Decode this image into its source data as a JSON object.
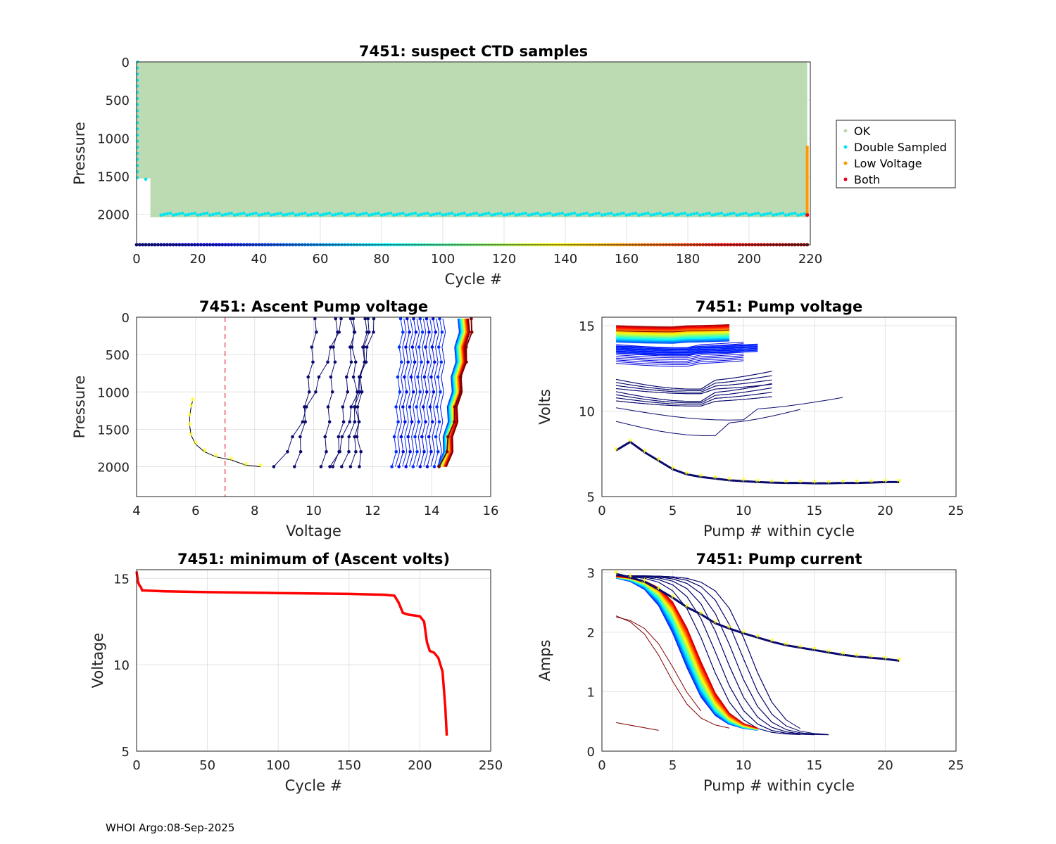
{
  "footer": "WHOI Argo:08-Sep-2025",
  "colors": {
    "ok": "#bcdbb3",
    "double_sampled": "#00e5ee",
    "low_voltage": "#ff9900",
    "both": "#e8001c",
    "min_line": "#ff0000",
    "threshold": "#e8001c",
    "marker": "#ffff00"
  },
  "chart_data": [
    {
      "id": "suspect",
      "type": "scatter",
      "title": "7451: suspect CTD samples",
      "xlabel": "Cycle #",
      "ylabel": "Pressure",
      "xlim": [
        0,
        220
      ],
      "ylim": [
        2400,
        0
      ],
      "xticks": [
        "0",
        "20",
        "40",
        "60",
        "80",
        "100",
        "120",
        "140",
        "160",
        "180",
        "200",
        "220"
      ],
      "yticks": [
        "0",
        "500",
        "1000",
        "1500",
        "2000"
      ],
      "grid": true,
      "legend": {
        "position": "right",
        "entries": [
          "OK",
          "Double Sampled",
          "Low Voltage",
          "Both"
        ]
      },
      "ok_region": {
        "cycle_range": [
          0,
          220
        ],
        "pressure_range": [
          0,
          2040
        ]
      },
      "double_sampled_bottom_pressure": 2010,
      "low_voltage": {
        "cycle": 219,
        "pressure_range": [
          1100,
          2000
        ]
      },
      "both": {
        "cycle": 219,
        "pressure": 2010
      }
    },
    {
      "id": "ascent_voltage",
      "type": "line",
      "title": "7451: Ascent Pump voltage",
      "xlabel": "Voltage",
      "ylabel": "Pressure",
      "xlim": [
        4,
        16
      ],
      "ylim": [
        2400,
        0
      ],
      "xticks": [
        "4",
        "6",
        "8",
        "10",
        "12",
        "14",
        "16"
      ],
      "yticks": [
        "0",
        "500",
        "1000",
        "1500",
        "2000"
      ],
      "grid": true,
      "threshold_voltage": 7,
      "last_cycle_profile": {
        "voltage": [
          8.2,
          7.7,
          7.2,
          6.7,
          6.3,
          6.0,
          5.85,
          5.8,
          5.8,
          5.85,
          5.9
        ],
        "pressure": [
          2000,
          1980,
          1910,
          1870,
          1800,
          1700,
          1580,
          1450,
          1320,
          1200,
          1120
        ]
      }
    },
    {
      "id": "pump_voltage",
      "type": "line",
      "title": "7451: Pump voltage",
      "xlabel": "Pump # within cycle",
      "ylabel": "Volts",
      "xlim": [
        0,
        25
      ],
      "ylim": [
        5,
        15.5
      ],
      "xticks": [
        "0",
        "5",
        "10",
        "15",
        "20",
        "25"
      ],
      "yticks": [
        "5",
        "10",
        "15"
      ],
      "grid": true,
      "last_cycle_profile": {
        "pump": [
          1,
          2,
          3,
          4,
          5,
          6,
          7,
          8,
          9,
          10,
          11,
          12,
          13,
          14,
          15,
          16,
          17,
          18,
          19,
          20,
          21
        ],
        "volts": [
          7.7,
          8.2,
          7.6,
          7.1,
          6.6,
          6.3,
          6.15,
          6.05,
          5.95,
          5.9,
          5.85,
          5.82,
          5.8,
          5.8,
          5.78,
          5.78,
          5.8,
          5.8,
          5.82,
          5.85,
          5.85
        ]
      }
    },
    {
      "id": "min_volts",
      "type": "line",
      "title": "7451: minimum of (Ascent volts)",
      "xlabel": "Cycle #",
      "ylabel": "Voltage",
      "xlim": [
        0,
        250
      ],
      "ylim": [
        5,
        15.5
      ],
      "xticks": [
        "0",
        "50",
        "100",
        "150",
        "200",
        "250"
      ],
      "yticks": [
        "5",
        "10",
        "15"
      ],
      "grid": true,
      "x": [
        0,
        1,
        2,
        3,
        4,
        5,
        20,
        50,
        100,
        150,
        175,
        182,
        185,
        188,
        192,
        200,
        203,
        205,
        207,
        210,
        213,
        216,
        218,
        219
      ],
      "y": [
        15.4,
        14.8,
        14.6,
        14.5,
        14.3,
        14.3,
        14.25,
        14.2,
        14.15,
        14.1,
        14.05,
        14.0,
        13.6,
        13.0,
        12.9,
        12.8,
        12.5,
        11.3,
        10.8,
        10.7,
        10.4,
        9.6,
        7.5,
        5.9
      ]
    },
    {
      "id": "pump_current",
      "type": "line",
      "title": "7451: Pump current",
      "xlabel": "Pump # within cycle",
      "ylabel": "Amps",
      "xlim": [
        0,
        25
      ],
      "ylim": [
        0,
        3.05
      ],
      "xticks": [
        "0",
        "5",
        "10",
        "15",
        "20",
        "25"
      ],
      "yticks": [
        "0",
        "1",
        "2",
        "3"
      ],
      "grid": true,
      "last_cycle_profile": {
        "pump": [
          1,
          2,
          3,
          4,
          5,
          6,
          7,
          8,
          9,
          10,
          11,
          12,
          13,
          14,
          15,
          16,
          17,
          18,
          19,
          20,
          21
        ],
        "amps": [
          2.98,
          2.92,
          2.85,
          2.72,
          2.58,
          2.42,
          2.3,
          2.15,
          2.06,
          1.98,
          1.91,
          1.84,
          1.78,
          1.74,
          1.7,
          1.66,
          1.62,
          1.59,
          1.57,
          1.55,
          1.52
        ]
      }
    }
  ]
}
